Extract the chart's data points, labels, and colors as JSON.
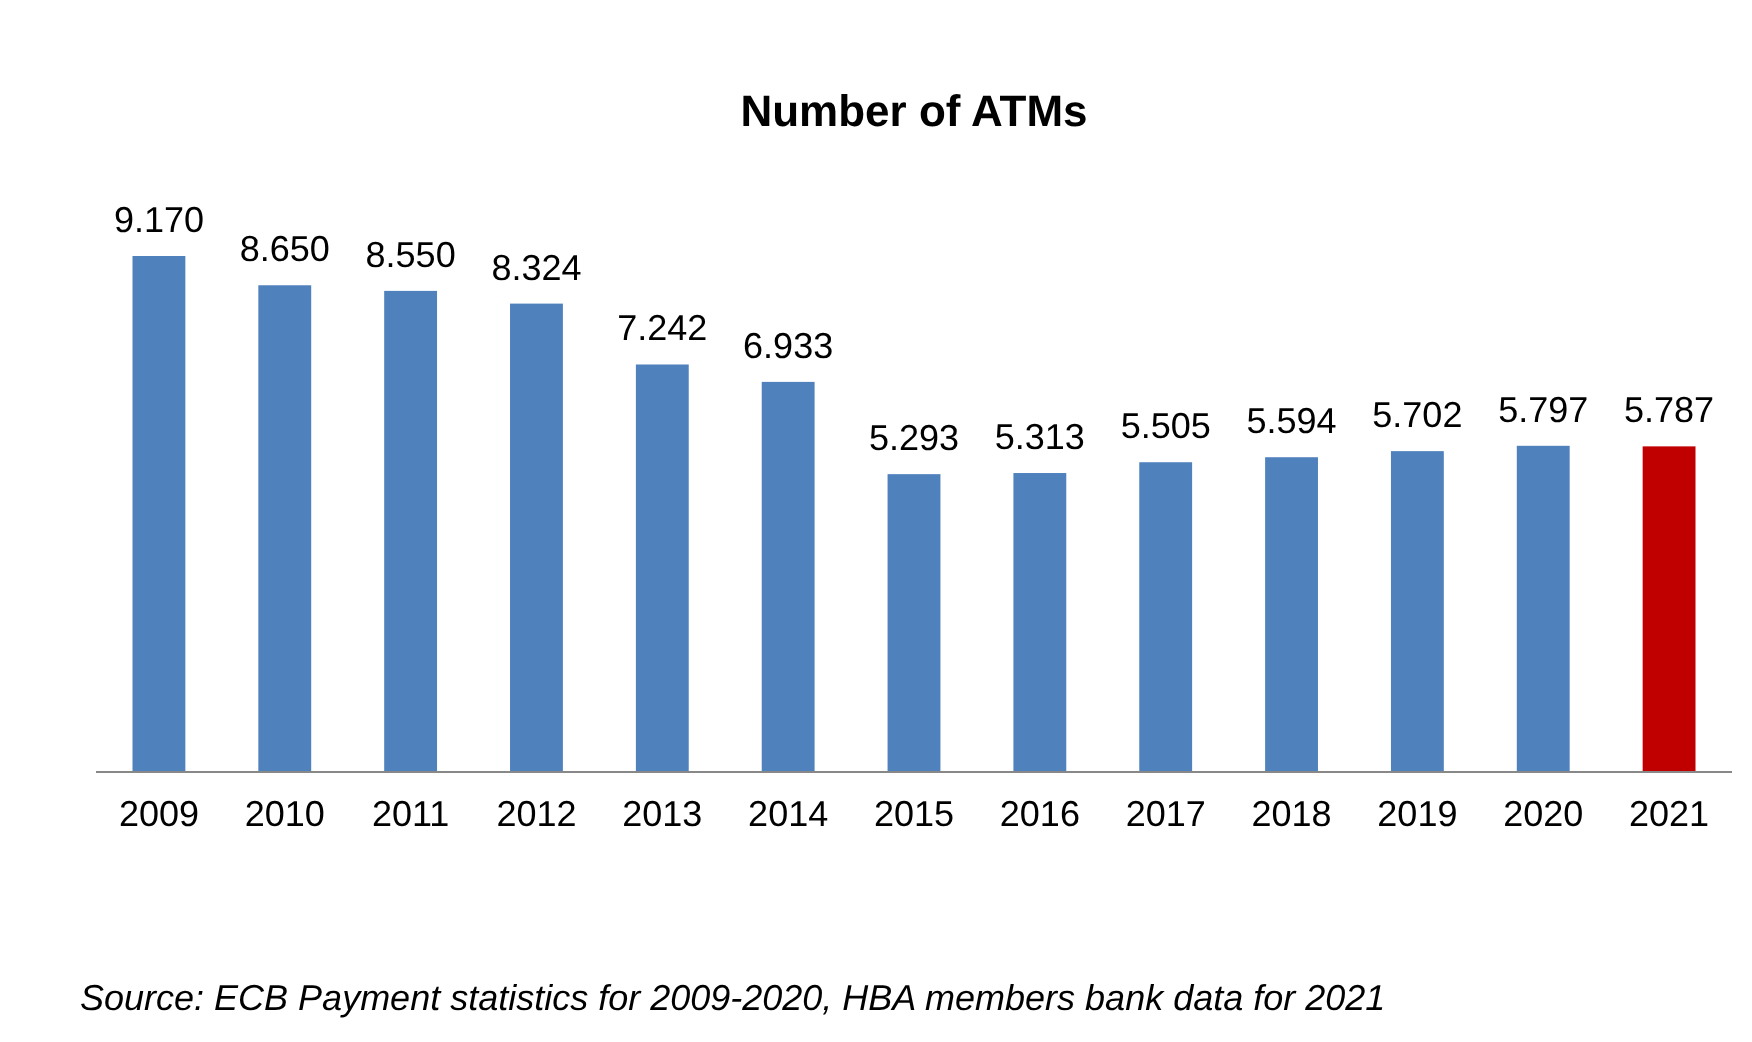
{
  "chart_data": {
    "type": "bar",
    "title": "Number of ATMs",
    "categories": [
      "2009",
      "2010",
      "2011",
      "2012",
      "2013",
      "2014",
      "2015",
      "2016",
      "2017",
      "2018",
      "2019",
      "2020",
      "2021"
    ],
    "values": [
      9170,
      8650,
      8550,
      8324,
      7242,
      6933,
      5293,
      5313,
      5505,
      5594,
      5702,
      5797,
      5787
    ],
    "value_labels": [
      "9.170",
      "8.650",
      "8.550",
      "8.324",
      "7.242",
      "6.933",
      "5.293",
      "5.313",
      "5.505",
      "5.594",
      "5.702",
      "5.797",
      "5.787"
    ],
    "colors": [
      "#4f81bd",
      "#4f81bd",
      "#4f81bd",
      "#4f81bd",
      "#4f81bd",
      "#4f81bd",
      "#4f81bd",
      "#4f81bd",
      "#4f81bd",
      "#4f81bd",
      "#4f81bd",
      "#4f81bd",
      "#c00000"
    ],
    "annotations": [
      "Source: ECB Payment statistics for 2009-2020, HBA members bank data for 2021"
    ]
  }
}
